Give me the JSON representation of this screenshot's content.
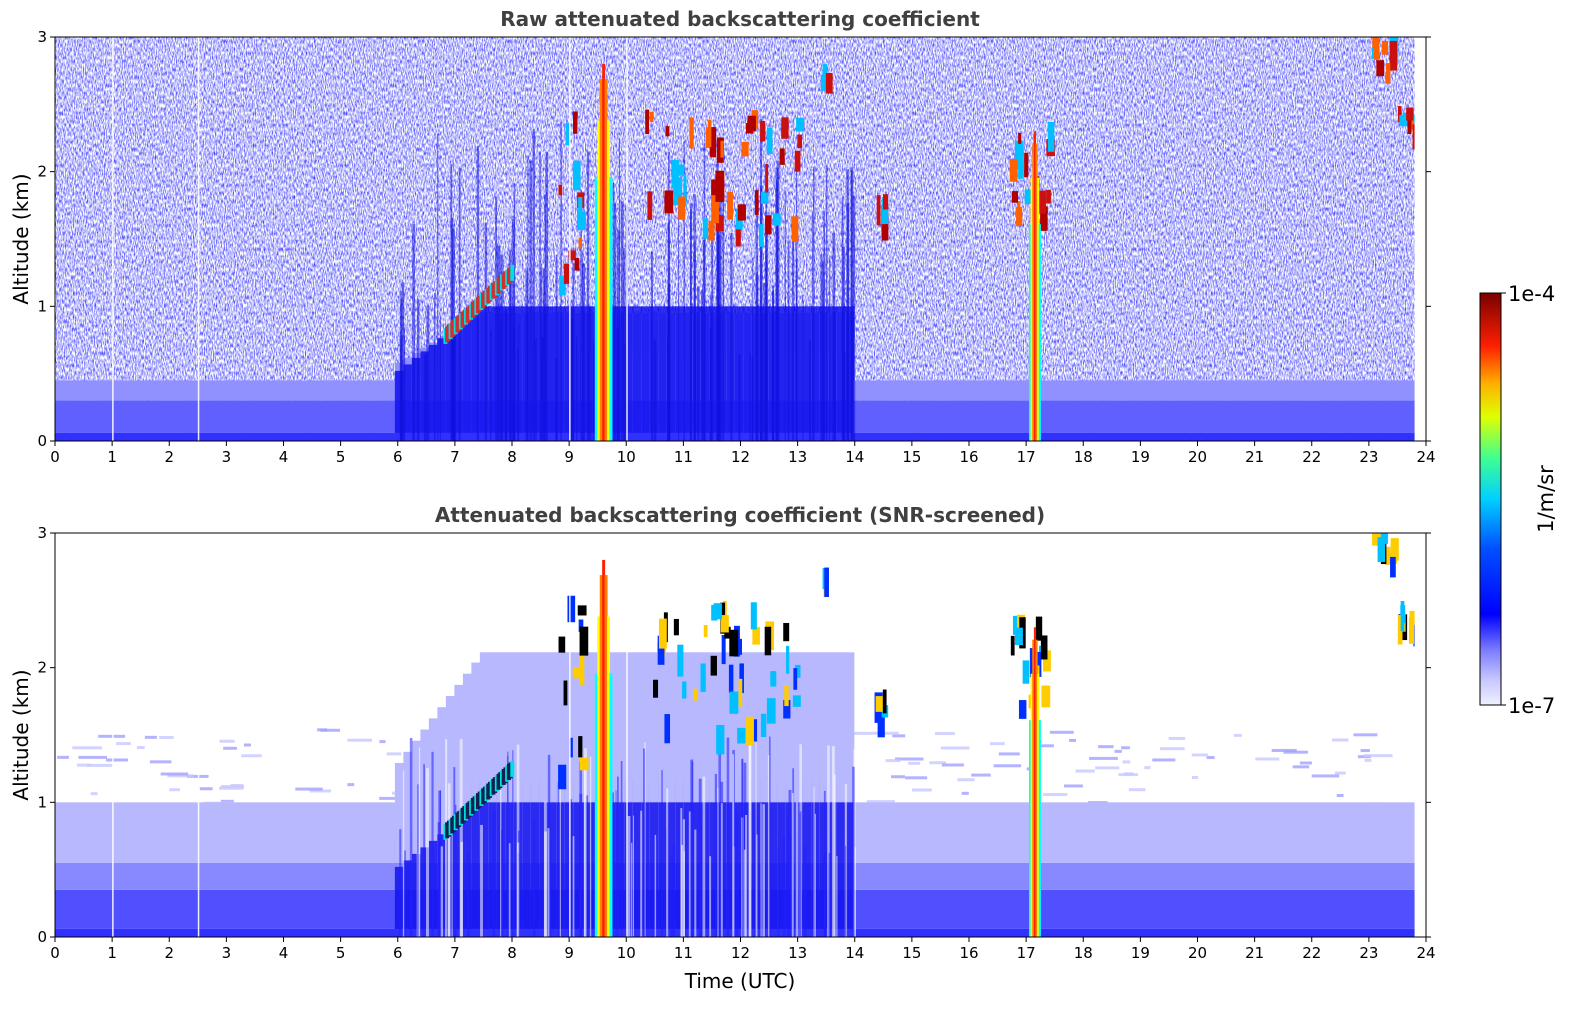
{
  "chart_data": [
    {
      "type": "heatmap",
      "title": "Raw attenuated backscattering coefficient",
      "xlabel": "",
      "ylabel": "Altitude (km)",
      "xlim": [
        0,
        24
      ],
      "ylim": [
        0,
        3
      ],
      "x_ticks": [
        "0",
        "1",
        "2",
        "3",
        "4",
        "5",
        "6",
        "7",
        "8",
        "9",
        "10",
        "11",
        "12",
        "13",
        "14",
        "15",
        "16",
        "17",
        "18",
        "19",
        "20",
        "21",
        "22",
        "23",
        "24"
      ],
      "y_ticks": [
        "0",
        "1",
        "2",
        "3"
      ],
      "screened": false,
      "features": [
        {
          "kind": "boundary_layer",
          "x": [
            0,
            24
          ],
          "y": [
            0,
            0.4
          ]
        },
        {
          "kind": "rising_aerosol_layer",
          "x": [
            6.8,
            8.0
          ],
          "y": [
            0.7,
            1.2
          ]
        },
        {
          "kind": "precipitation_column",
          "x": [
            9.45,
            9.75
          ],
          "y": [
            0,
            2.8
          ]
        },
        {
          "kind": "precipitation_column",
          "x": [
            17.05,
            17.25
          ],
          "y": [
            0,
            2.3
          ]
        },
        {
          "kind": "cloud_patches",
          "x": [
            10.3,
            13.0
          ],
          "y": [
            1.4,
            2.4
          ]
        },
        {
          "kind": "cloud_patch",
          "x": [
            14.3,
            14.5
          ],
          "y": [
            1.6,
            1.75
          ]
        },
        {
          "kind": "cloud_patch",
          "x": [
            13.4,
            13.5
          ],
          "y": [
            2.6,
            2.75
          ]
        },
        {
          "kind": "cloud_patch",
          "x": [
            23.05,
            23.4
          ],
          "y": [
            2.7,
            2.95
          ]
        },
        {
          "kind": "cloud_patch",
          "x": [
            23.5,
            23.8
          ],
          "y": [
            2.25,
            2.4
          ]
        }
      ]
    },
    {
      "type": "heatmap",
      "title": "Attenuated backscattering coefficient (SNR-screened)",
      "xlabel": "Time (UTC)",
      "ylabel": "Altitude (km)",
      "xlim": [
        0,
        24
      ],
      "ylim": [
        0,
        3
      ],
      "x_ticks": [
        "0",
        "1",
        "2",
        "3",
        "4",
        "5",
        "6",
        "7",
        "8",
        "9",
        "10",
        "11",
        "12",
        "13",
        "14",
        "15",
        "16",
        "17",
        "18",
        "19",
        "20",
        "21",
        "22",
        "23",
        "24"
      ],
      "y_ticks": [
        "0",
        "1",
        "2",
        "3"
      ],
      "screened": true,
      "colorbar": {
        "label": "1/m/sr",
        "min_label": "1e-7",
        "max_label": "1e-4",
        "scale": "log",
        "min": 1e-07,
        "max": 0.0001
      }
    }
  ],
  "colors": {
    "low": "#e6e6ff",
    "mid": "#0000ff",
    "cyan": "#00ffff",
    "yellow": "#ffff00",
    "high": "#800000"
  }
}
